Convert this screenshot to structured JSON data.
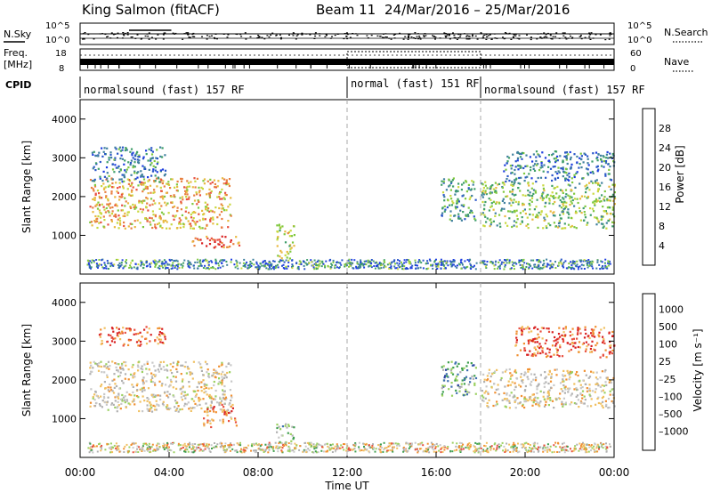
{
  "header": {
    "station": "King Salmon (fitACF)",
    "beam": "Beam 11",
    "date_range": "24/Mar/2016 – 25/Mar/2016"
  },
  "colors": {
    "power": [
      "#1f3fe0",
      "#2855c8",
      "#3f7f9e",
      "#3f9e6a",
      "#7fc83f",
      "#c8d83f",
      "#e8b83f",
      "#e87f3f",
      "#e84f3f",
      "#d81f1f"
    ],
    "velocity": [
      "#d81f1f",
      "#e84f3f",
      "#f08f30",
      "#f0c060",
      "#c8c8c8",
      "#b0b0b0",
      "#9bd060",
      "#3f9f4f",
      "#3f6fb0",
      "#2a3fa0"
    ],
    "vel_band": [
      "#d81f1f",
      "#e84f3f",
      "#f08f30",
      "#f0c060",
      "#c8c8c8",
      "#c8c8c8",
      "#9bd060",
      "#3f9f4f",
      "#3f6fb0",
      "#2a3fa0"
    ]
  },
  "chart_data": [
    {
      "type": "line",
      "panel": "top strip",
      "left_labels": [
        "N.Sky",
        "Freq.",
        "[MHz]",
        "CPID"
      ],
      "right_labels": [
        "N.Search",
        "Nave"
      ],
      "left_ticks_top": [
        "10^5",
        "10^0"
      ],
      "right_ticks_top": [
        "10^5",
        "10^0"
      ],
      "left_ticks_freq": [
        "18",
        "8"
      ],
      "right_ticks_nave": [
        "60",
        "0"
      ],
      "cpid_segments": [
        {
          "label": "normalsound (fast) 157 RF",
          "start_h": 0,
          "end_h": 12
        },
        {
          "label": "normal (fast) 151 RF",
          "start_h": 12,
          "end_h": 17
        },
        {
          "label": "normalsound (fast) 157 RF",
          "start_h": 18,
          "end_h": 24
        }
      ]
    },
    {
      "type": "heatmap",
      "panel": "power",
      "xlim": [
        0,
        24
      ],
      "ylim": [
        0,
        4500
      ],
      "ylabel": "Slant Range [km]",
      "y_ticks": [
        "1000",
        "2000",
        "3000",
        "4000"
      ],
      "colorbar_label": "Power [dB]",
      "colorbar_ticks": [
        "4",
        "8",
        "12",
        "16",
        "20",
        "24",
        "28"
      ],
      "scatter_regions": [
        {
          "x0": 0.4,
          "x1": 6.8,
          "y0": 1200,
          "y1": 2500,
          "level": 6
        },
        {
          "x0": 0.5,
          "x1": 3.8,
          "y0": 2400,
          "y1": 3300,
          "level": 2
        },
        {
          "x0": 5.0,
          "x1": 7.2,
          "y0": 700,
          "y1": 1000,
          "level": 8
        },
        {
          "x0": 8.8,
          "x1": 9.6,
          "y0": 400,
          "y1": 1300,
          "level": 5
        },
        {
          "x0": 16.2,
          "x1": 17.8,
          "y0": 1400,
          "y1": 2500,
          "level": 3
        },
        {
          "x0": 18.0,
          "x1": 24.0,
          "y0": 1200,
          "y1": 2400,
          "level": 4
        },
        {
          "x0": 19.0,
          "x1": 24.0,
          "y0": 2400,
          "y1": 3200,
          "level": 2
        }
      ]
    },
    {
      "type": "heatmap",
      "panel": "velocity",
      "xlim": [
        0,
        24
      ],
      "ylim": [
        0,
        4500
      ],
      "ylabel": "Slant Range [km]",
      "y_ticks": [
        "1000",
        "2000",
        "3000",
        "4000"
      ],
      "colorbar_label": "Velocity [m s⁻¹]",
      "colorbar_ticks": [
        "1000",
        "500",
        "100",
        "25",
        "–25",
        "–100",
        "–500",
        "–1000"
      ],
      "x_ticks": [
        "00:00",
        "04:00",
        "08:00",
        "12:00",
        "16:00",
        "20:00",
        "00:00"
      ],
      "xlabel": "Time UT",
      "scatter_regions": [
        {
          "x0": 0.4,
          "x1": 6.8,
          "y0": 1200,
          "y1": 2500,
          "level": 4
        },
        {
          "x0": 5.5,
          "x1": 7.0,
          "y0": 800,
          "y1": 1400,
          "level": 2
        },
        {
          "x0": 0.8,
          "x1": 3.8,
          "y0": 2900,
          "y1": 3400,
          "level": 1
        },
        {
          "x0": 8.8,
          "x1": 9.6,
          "y0": 400,
          "y1": 900,
          "level": 6
        },
        {
          "x0": 16.2,
          "x1": 17.8,
          "y0": 1600,
          "y1": 2500,
          "level": 7
        },
        {
          "x0": 18.0,
          "x1": 24.0,
          "y0": 1300,
          "y1": 2300,
          "level": 4
        },
        {
          "x0": 19.5,
          "x1": 24.0,
          "y0": 2600,
          "y1": 3400,
          "level": 1
        }
      ]
    }
  ]
}
